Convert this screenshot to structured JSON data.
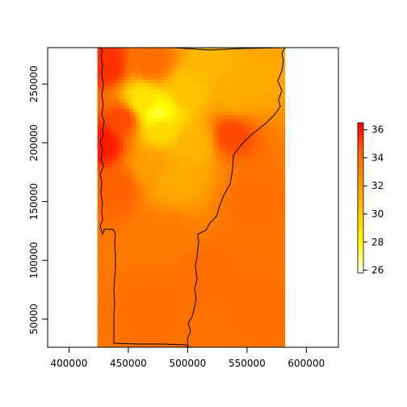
{
  "map": {
    "x_ticks": [
      "400000",
      "450000",
      "500000",
      "550000",
      "600000"
    ],
    "y_ticks": [
      "50000",
      "100000",
      "150000",
      "200000",
      "250000"
    ],
    "x_tick_values": [
      400000,
      450000,
      500000,
      550000,
      600000
    ],
    "y_tick_values": [
      50000,
      100000,
      150000,
      200000,
      250000
    ],
    "xlim": [
      382000,
      627000
    ],
    "ylim": [
      26000,
      281000
    ],
    "raster_extent": {
      "x": [
        424000,
        581000
      ],
      "y": [
        26000,
        281000
      ]
    },
    "hotspots": [
      {
        "x": 475000,
        "y": 224000,
        "value": 27.5
      },
      {
        "x": 462000,
        "y": 236000,
        "value": 29
      },
      {
        "x": 478000,
        "y": 214000,
        "value": 29.5
      },
      {
        "x": 500000,
        "y": 246000,
        "value": 30.5
      },
      {
        "x": 520000,
        "y": 268000,
        "value": 31
      },
      {
        "x": 555000,
        "y": 255000,
        "value": 31.5
      },
      {
        "x": 540000,
        "y": 240000,
        "value": 31.5
      },
      {
        "x": 505000,
        "y": 200000,
        "value": 31
      },
      {
        "x": 470000,
        "y": 180000,
        "value": 32
      },
      {
        "x": 490000,
        "y": 170000,
        "value": 31.5
      },
      {
        "x": 432000,
        "y": 265000,
        "value": 35.5
      },
      {
        "x": 445000,
        "y": 220000,
        "value": 35
      },
      {
        "x": 428000,
        "y": 200000,
        "value": 36
      },
      {
        "x": 440000,
        "y": 162000,
        "value": 34.5
      },
      {
        "x": 537000,
        "y": 207000,
        "value": 35
      },
      {
        "x": 470000,
        "y": 268000,
        "value": 34
      },
      {
        "x": 555000,
        "y": 150000,
        "value": 34
      },
      {
        "x": 480000,
        "y": 120000,
        "value": 33.5
      },
      {
        "x": 520000,
        "y": 90000,
        "value": 34
      },
      {
        "x": 470000,
        "y": 60000,
        "value": 34
      },
      {
        "x": 560000,
        "y": 60000,
        "value": 34
      }
    ],
    "base_value": 33.6
  },
  "legend": {
    "labels": [
      "26",
      "28",
      "30",
      "32",
      "34",
      "36"
    ],
    "values": [
      26,
      28,
      30,
      32,
      34,
      36
    ],
    "range": [
      25.8,
      36.5
    ],
    "colors": [
      "#FFFFFF",
      "#FFFF00",
      "#FFCC00",
      "#FF9900",
      "#FF6600",
      "#FF0000"
    ]
  },
  "border_color": "#000000"
}
